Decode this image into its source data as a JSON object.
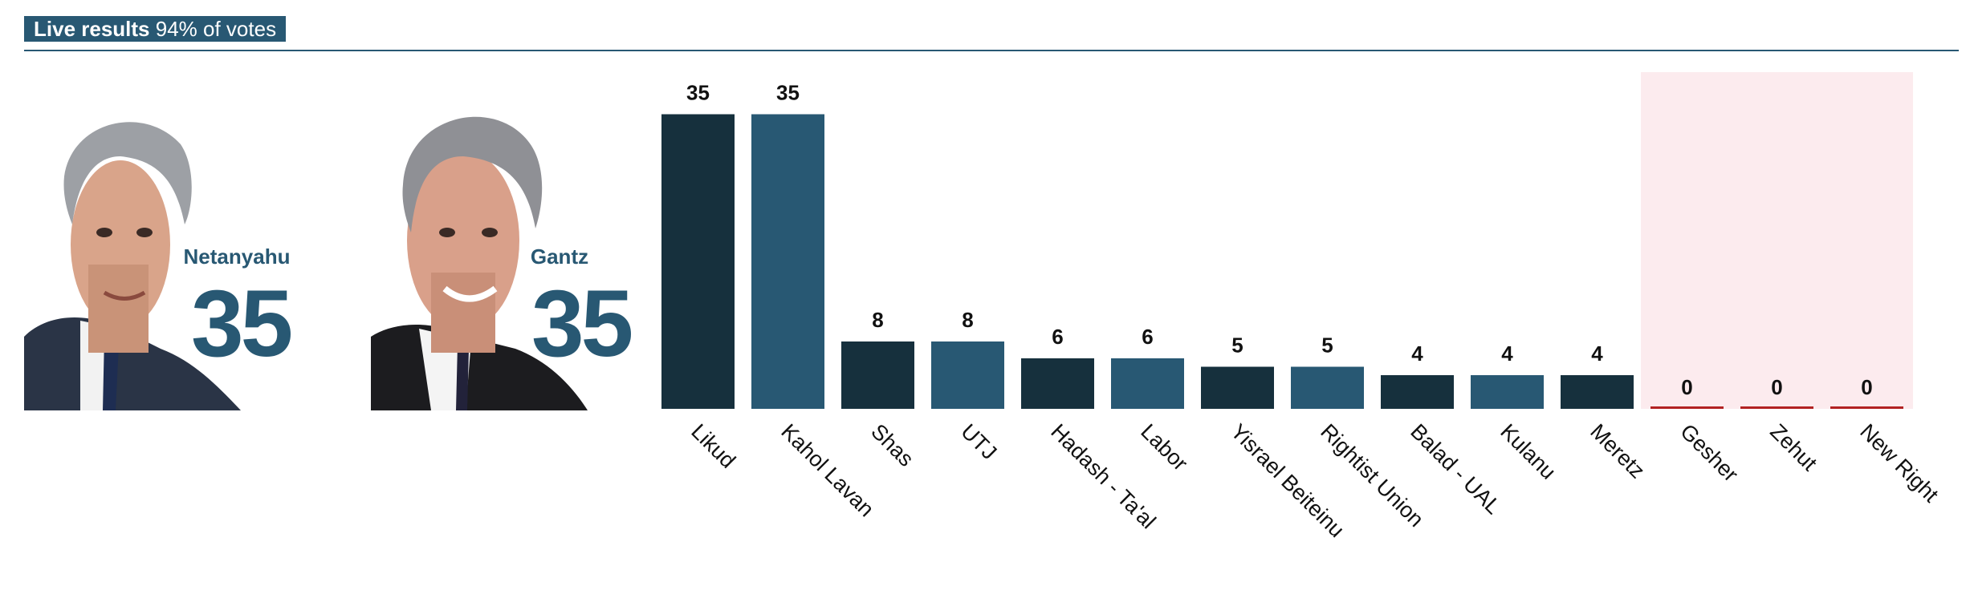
{
  "header": {
    "title_bold": "Live results",
    "title_rest": "94% of votes"
  },
  "candidates": [
    {
      "name": "Netanyahu",
      "seats": "35"
    },
    {
      "name": "Gantz",
      "seats": "35"
    }
  ],
  "colors": {
    "header_bg": "#285873",
    "bar_dark": "#16303d",
    "bar_mid": "#285873",
    "zero_line": "#b22222",
    "zero_zone": "#fcebee"
  },
  "chart_data": {
    "type": "bar",
    "title": "",
    "xlabel": "",
    "ylabel": "",
    "ylim": [
      0,
      40
    ],
    "categories": [
      "Likud",
      "Kahol Lavan",
      "Shas",
      "UTJ",
      "Hadash - Ta'al",
      "Labor",
      "Yisrael Beiteinu",
      "Rightist Union",
      "Balad - UAL",
      "Kulanu",
      "Meretz",
      "Gesher",
      "Zehut",
      "New Right"
    ],
    "values": [
      35,
      35,
      8,
      8,
      6,
      6,
      5,
      5,
      4,
      4,
      4,
      0,
      0,
      0
    ],
    "data_labels": [
      "35",
      "35",
      "8",
      "8",
      "6",
      "6",
      "5",
      "5",
      "4",
      "4",
      "4",
      "0",
      "0",
      "0"
    ],
    "below_threshold_categories": [
      "Gesher",
      "Zehut",
      "New Right"
    ],
    "grid": false,
    "legend": "none"
  }
}
